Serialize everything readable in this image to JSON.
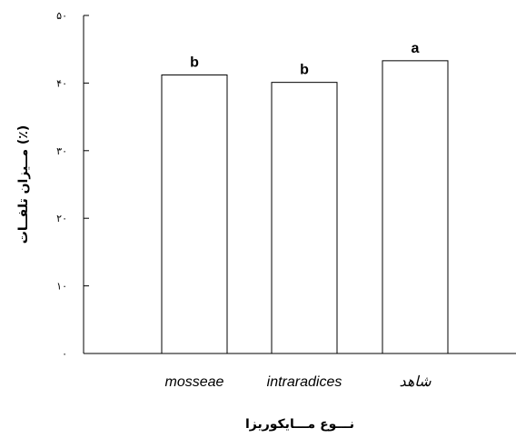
{
  "chart_data": {
    "type": "bar",
    "categories": [
      "mosseae",
      "intraradices",
      "شاهد"
    ],
    "values": [
      41.2,
      40.1,
      43.3
    ],
    "significance_letters": [
      "b",
      "b",
      "a"
    ],
    "ylim": [
      0,
      50
    ],
    "yticks": [
      0,
      10,
      20,
      30,
      40,
      50
    ],
    "ytick_labels": [
      "۰",
      "۱۰",
      "۲۰",
      "۳۰",
      "۴۰",
      "۵۰"
    ],
    "xlabel": "نـــوع مـــایکوریزا",
    "ylabel": "مــیزان تلفــات (٪)",
    "bar_fill": "#ffffff",
    "bar_stroke": "#000000",
    "grid": false,
    "legend": "none"
  }
}
